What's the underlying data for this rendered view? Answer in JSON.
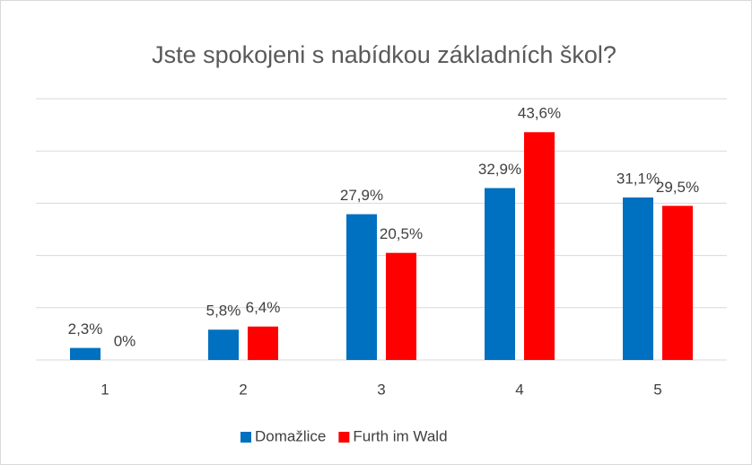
{
  "chart_data": {
    "type": "bar",
    "title": "Jste spokojeni s nabídkou základních škol?",
    "categories": [
      "1",
      "2",
      "3",
      "4",
      "5"
    ],
    "series": [
      {
        "name": "Domažlice",
        "color": "#0070c0",
        "values": [
          2.3,
          5.8,
          27.9,
          32.9,
          31.1
        ],
        "value_labels": [
          "2,3%",
          "5,8%",
          "27,9%",
          "32,9%",
          "31,1%"
        ]
      },
      {
        "name": "Furth im Wald",
        "color": "#ff0000",
        "values": [
          0,
          6.4,
          20.5,
          43.6,
          29.5
        ],
        "value_labels": [
          "0%",
          "6,4%",
          "20,5%",
          "43,6%",
          "29,5%"
        ]
      }
    ],
    "ylim": [
      0,
      50
    ],
    "yticks": [
      0,
      10,
      20,
      30,
      40,
      50
    ],
    "grid": true,
    "legend": "bottom"
  }
}
